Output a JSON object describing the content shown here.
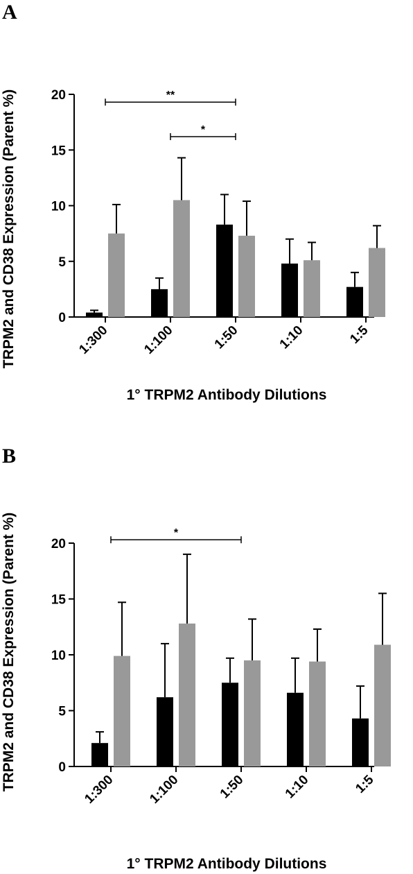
{
  "chart_data": [
    {
      "panel_label": "A",
      "type": "bar",
      "xlabel": "1° TRPM2 Antibody Dilutions",
      "ylabel": "TRPM2 and CD38 Expression (Parent %)",
      "categories": [
        "1:300",
        "1:100",
        "1:50",
        "1:10",
        "1:5"
      ],
      "ylim": [
        0,
        20
      ],
      "yticks": [
        0,
        5,
        10,
        15,
        20
      ],
      "series": [
        {
          "color": "#000000",
          "values": [
            0.4,
            2.5,
            8.3,
            4.8,
            2.7
          ],
          "errors": [
            0.2,
            1.0,
            2.7,
            2.2,
            1.3
          ]
        },
        {
          "color": "#999999",
          "values": [
            7.5,
            10.5,
            7.3,
            5.1,
            6.2
          ],
          "errors": [
            2.6,
            3.8,
            3.1,
            1.6,
            2.0
          ]
        }
      ],
      "significance": [
        {
          "label": "**",
          "from": "1:300",
          "to": "1:50",
          "y": 19.3
        },
        {
          "label": "*",
          "from": "1:100",
          "to": "1:50",
          "y": 16.2
        }
      ]
    },
    {
      "panel_label": "B",
      "type": "bar",
      "xlabel": "1° TRPM2 Antibody Dilutions",
      "ylabel": "TRPM2 and CD38 Expression (Parent %)",
      "categories": [
        "1:300",
        "1:100",
        "1:50",
        "1:10",
        "1:5"
      ],
      "ylim": [
        0,
        20
      ],
      "yticks": [
        0,
        5,
        10,
        15,
        20
      ],
      "series": [
        {
          "color": "#000000",
          "values": [
            2.1,
            6.2,
            7.5,
            6.6,
            4.3
          ],
          "errors": [
            1.0,
            4.8,
            2.2,
            3.1,
            2.9
          ]
        },
        {
          "color": "#999999",
          "values": [
            9.9,
            12.8,
            9.5,
            9.4,
            10.9
          ],
          "errors": [
            4.8,
            6.2,
            3.7,
            2.9,
            4.6
          ]
        }
      ],
      "significance": [
        {
          "label": "*",
          "from": "1:300",
          "to": "1:50",
          "y": 20.3
        }
      ]
    }
  ]
}
